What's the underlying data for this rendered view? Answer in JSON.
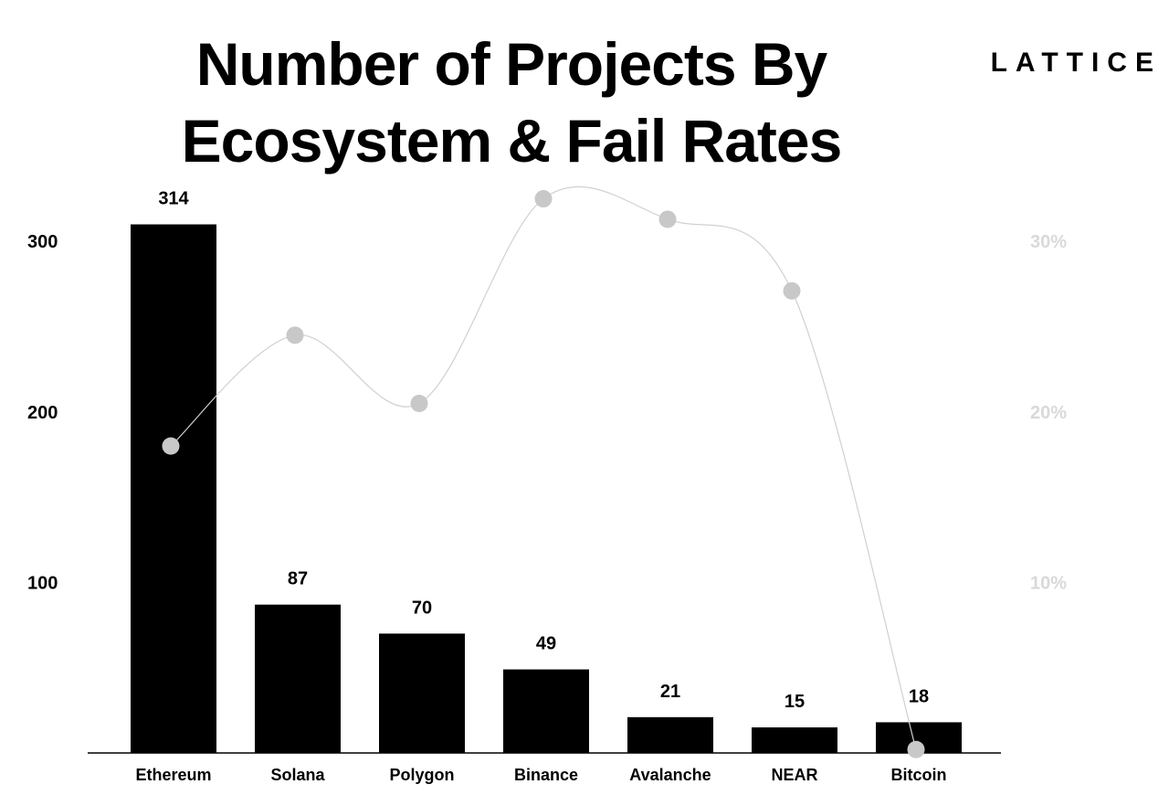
{
  "title": {
    "line1": "Number of Projects By",
    "line2": "Ecosystem & Fail Rates"
  },
  "logo": "LATTICE",
  "colors": {
    "bars": "#000000",
    "fail_points": "#c8c8c8",
    "fail_line": "#d0d0d0",
    "right_axis_labels": "#d9d9d9"
  },
  "chart_data": {
    "type": "bar",
    "categories": [
      "Ethereum",
      "Solana",
      "Polygon",
      "Binance",
      "Avalanche",
      "NEAR",
      "Bitcoin"
    ],
    "series": [
      {
        "values": [
          314,
          87,
          70,
          49,
          21,
          15,
          18
        ],
        "axis": "left",
        "kind": "bar"
      },
      {
        "values": [
          18,
          24.5,
          20.5,
          32.5,
          31.3,
          27.1,
          0.2
        ],
        "axis": "right",
        "kind": "line",
        "unit": "%"
      }
    ],
    "y_left": {
      "ticks": [
        100,
        200,
        300
      ],
      "tick_labels": [
        "100",
        "200",
        "300"
      ],
      "range": [
        0,
        310
      ]
    },
    "y_right": {
      "ticks": [
        10,
        20,
        30
      ],
      "tick_labels": [
        "10%",
        "20%",
        "30%"
      ],
      "range": [
        0,
        31
      ]
    },
    "data_labels": [
      "314",
      "87",
      "70",
      "49",
      "21",
      "15",
      "18"
    ],
    "grid": false,
    "legend": "none"
  }
}
